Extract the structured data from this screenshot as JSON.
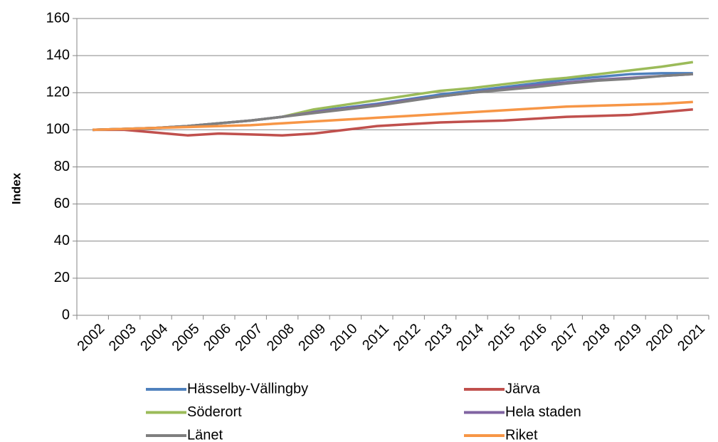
{
  "chart_data": {
    "type": "line",
    "y_label": "Index",
    "categories": [
      "2002",
      "2003",
      "2004",
      "2005",
      "2006",
      "2007",
      "2008",
      "2009",
      "2010",
      "2011",
      "2012",
      "2013",
      "2014",
      "2015",
      "2016",
      "2017",
      "2018",
      "2019",
      "2020",
      "2021"
    ],
    "series": [
      {
        "name": "Hässelby-Vällingby",
        "color": "#4f81bd",
        "values": [
          100,
          100.5,
          101,
          102,
          103.5,
          105,
          107,
          110,
          112,
          114,
          116.5,
          119,
          121,
          123,
          125,
          127,
          128.5,
          130,
          130.5,
          130.5
        ]
      },
      {
        "name": "Järva",
        "color": "#c0504d",
        "values": [
          100,
          100,
          98.5,
          97,
          98,
          97.5,
          97,
          98,
          100,
          102,
          103,
          104,
          104.5,
          105,
          106,
          107,
          107.5,
          108,
          109.5,
          111
        ]
      },
      {
        "name": "Söderort",
        "color": "#9bbb59",
        "values": [
          100,
          100.5,
          101,
          102,
          103.5,
          105,
          107,
          111,
          113.5,
          116,
          118.5,
          121,
          122.5,
          124.5,
          126.5,
          128,
          130,
          132,
          134,
          136.5
        ]
      },
      {
        "name": "Hela staden",
        "color": "#8064a2",
        "values": [
          100,
          100.5,
          101,
          102,
          103.5,
          105,
          107,
          109.5,
          111.5,
          113.5,
          116,
          118,
          120,
          122,
          124,
          125.5,
          127,
          128,
          129,
          130
        ]
      },
      {
        "name": "Länet",
        "color": "#7f7f7f",
        "values": [
          100,
          100.5,
          101,
          102,
          103.5,
          105,
          107,
          109,
          111,
          113,
          115.5,
          118,
          120,
          121.5,
          123,
          125,
          126.5,
          127.5,
          129,
          130
        ]
      },
      {
        "name": "Riket",
        "color": "#f79646",
        "values": [
          100,
          100.5,
          101,
          101.5,
          102,
          102.5,
          103.5,
          104.5,
          105.5,
          106.5,
          107.5,
          108.5,
          109.5,
          110.5,
          111.5,
          112.5,
          113,
          113.5,
          114,
          115
        ]
      }
    ],
    "ylim": [
      0,
      160
    ],
    "yticks": [
      0,
      20,
      40,
      60,
      80,
      100,
      120,
      140,
      160
    ],
    "grid": true,
    "legend": "bottom"
  }
}
